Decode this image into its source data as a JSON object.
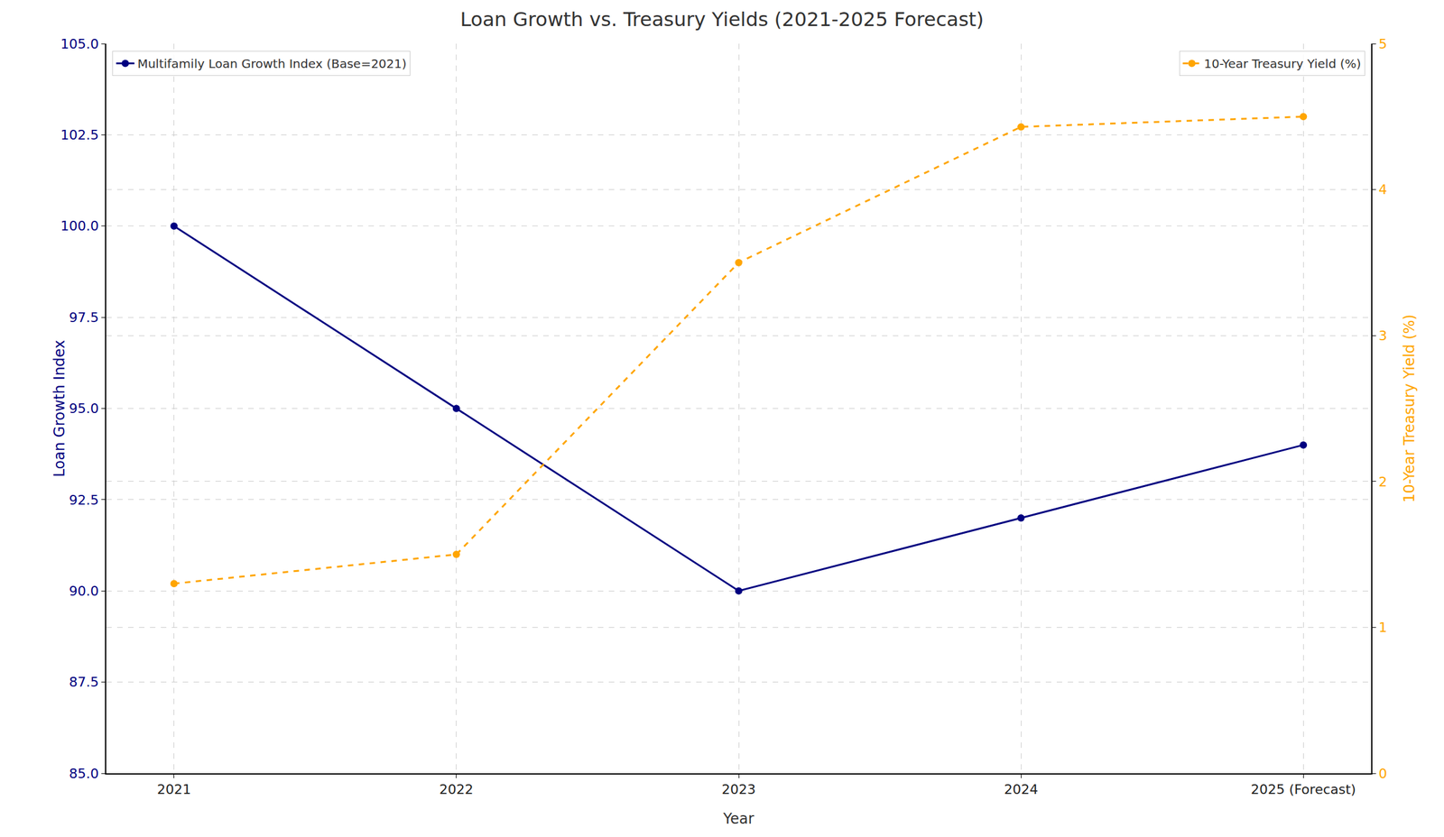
{
  "chart_data": {
    "type": "line",
    "title": "Loan Growth vs. Treasury Yields (2021-2025 Forecast)",
    "x_label": "Year",
    "y_label": "Loan Growth Index",
    "y2_label": "10-Year Treasury Yield (%)",
    "categories": [
      "2021",
      "2022",
      "2023",
      "2024",
      "2025 (Forecast)"
    ],
    "series": [
      {
        "name": "Multifamily Loan Growth Index (Base=2021)",
        "color": "#000080",
        "values": [
          100,
          95,
          90,
          92,
          94
        ],
        "marker": "circle",
        "line_style": "solid",
        "legend": "upper left"
      },
      {
        "name": "10-Year Treasury Yield (%)",
        "color": "#FFA500",
        "values": [
          1.3,
          1.5,
          3.5,
          4.43,
          4.5
        ],
        "marker": "circle",
        "line_style": "dashed",
        "axis": "y2",
        "legend": "upper right"
      }
    ],
    "ylim": [
      85,
      105
    ],
    "yticks": [
      {
        "value": 85,
        "label": "85.0"
      },
      87.5,
      {
        "value": 90,
        "label": "90.0"
      },
      92.5,
      {
        "value": 95,
        "label": "95.0"
      },
      97.5,
      {
        "value": 100,
        "label": "100.0"
      },
      102.5,
      {
        "value": 105,
        "label": "105.0"
      }
    ],
    "y2lim": [
      0,
      5
    ],
    "y2ticks": [
      0,
      1,
      2,
      3,
      4,
      5
    ],
    "grid": true
  }
}
